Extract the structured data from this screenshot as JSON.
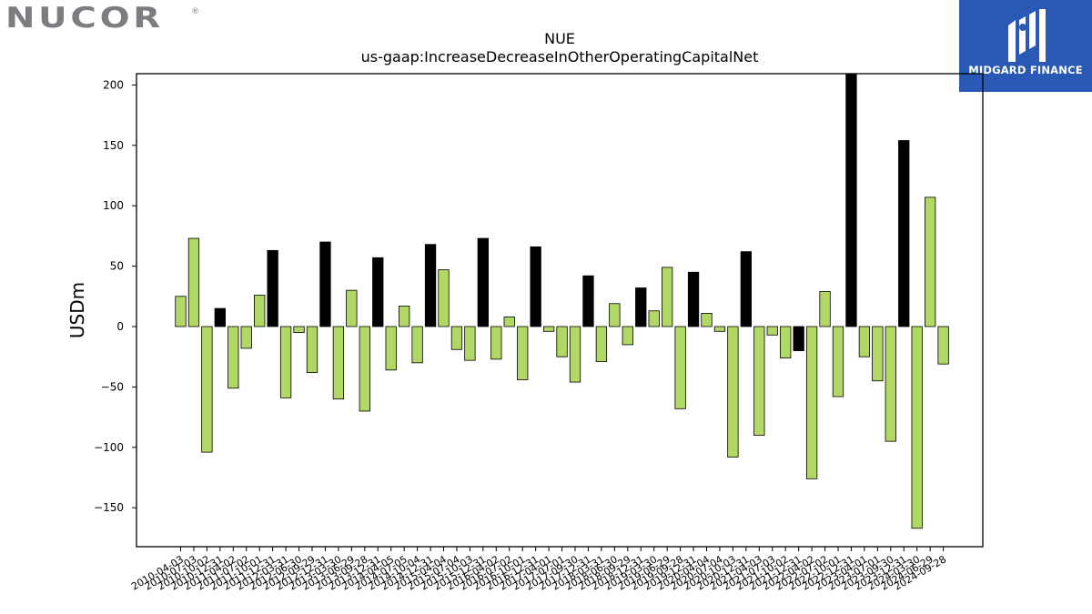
{
  "logos": {
    "left": {
      "text": "NUCOR",
      "mark": "®",
      "text_color": "#7b7d80"
    },
    "right": {
      "text": "MIDGARD FINANCE",
      "background": "#2a59b5",
      "text_color": "#ffffff"
    }
  },
  "chart_data": {
    "type": "bar",
    "title": "NUE",
    "subtitle": "us-gaap:IncreaseDecreaseInOtherOperatingCapitalNet",
    "ylabel": "USDm",
    "xlabel": "",
    "ylim": [
      -182,
      210
    ],
    "yticks": [
      -150,
      -100,
      -50,
      0,
      50,
      100,
      150,
      200
    ],
    "grid": false,
    "colors": {
      "default": "#b1d865",
      "highlight": "#000000"
    },
    "categories": [
      "2010-04-03",
      "2010-07-03",
      "2010-10-02",
      "2010-12-31",
      "2011-04-02",
      "2011-07-02",
      "2011-10-01",
      "2011-12-31",
      "2012-03-31",
      "2012-06-30",
      "2012-09-29",
      "2012-12-31",
      "2013-03-30",
      "2013-06-29",
      "2013-09-28",
      "2013-12-31",
      "2014-04-05",
      "2014-07-05",
      "2014-10-04",
      "2014-12-31",
      "2015-04-04",
      "2015-07-04",
      "2015-10-03",
      "2015-12-31",
      "2016-04-02",
      "2016-07-02",
      "2016-10-01",
      "2016-12-31",
      "2017-04-01",
      "2017-07-01",
      "2017-09-30",
      "2017-12-31",
      "2018-03-31",
      "2018-06-30",
      "2018-09-29",
      "2018-12-31",
      "2019-03-30",
      "2019-06-29",
      "2019-09-28",
      "2019-12-31",
      "2020-04-04",
      "2020-07-04",
      "2020-10-03",
      "2020-12-31",
      "2021-04-03",
      "2021-07-03",
      "2021-10-02",
      "2021-12-31",
      "2022-04-02",
      "2022-07-02",
      "2022-10-01",
      "2022-12-31",
      "2023-04-01",
      "2023-07-01",
      "2023-09-30",
      "2023-12-31",
      "2024-03-30",
      "2024-06-29",
      "2024-09-28"
    ],
    "values": [
      25,
      73,
      -104,
      15,
      -51,
      -18,
      26,
      63,
      -59,
      -5,
      -38,
      70,
      -60,
      30,
      -70,
      57,
      -36,
      17,
      -30,
      68,
      47,
      -19,
      -28,
      73,
      -27,
      8,
      -44,
      66,
      -4,
      -25,
      -46,
      42,
      -29,
      19,
      -15,
      32,
      13,
      49,
      -68,
      45,
      11,
      -4,
      -108,
      62,
      -90,
      -7,
      -26,
      -20,
      -126,
      29,
      -58,
      210,
      -25,
      -45,
      -95,
      154,
      -167,
      107,
      -31
    ],
    "highlight": [
      3,
      7,
      11,
      15,
      19,
      23,
      27,
      31,
      35,
      39,
      43,
      47,
      51,
      55
    ]
  }
}
